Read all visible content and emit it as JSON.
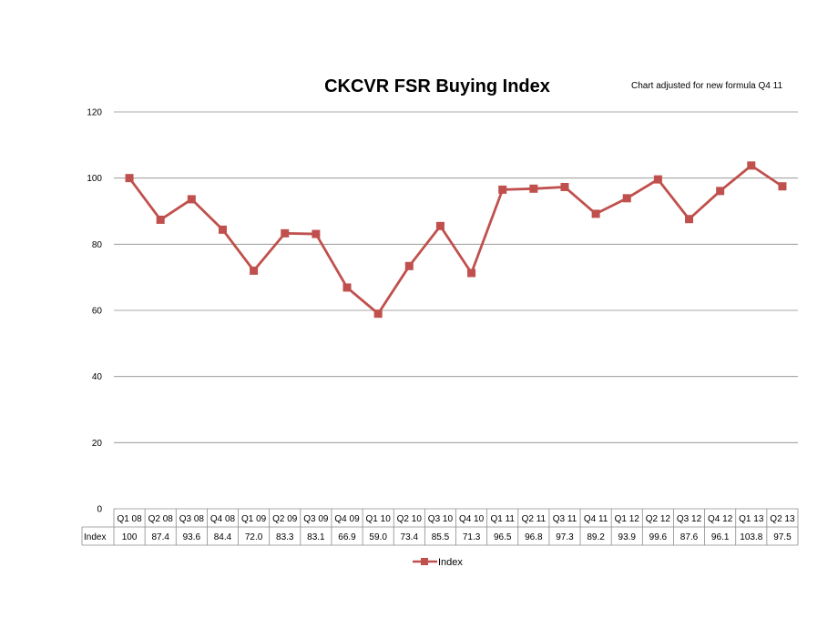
{
  "chart_data": {
    "type": "line",
    "title": "CKCVR FSR Buying Index",
    "annotation": "Chart adjusted for new formula Q4 11",
    "xlabel": "",
    "ylabel": "",
    "ylim": [
      0,
      120
    ],
    "y_ticks": [
      "0",
      "20",
      "40",
      "60",
      "80",
      "100",
      "120"
    ],
    "grid": true,
    "legend_position": "bottom",
    "categories": [
      "Q1 08",
      "Q2 08",
      "Q3 08",
      "Q4 08",
      "Q1 09",
      "Q2 09",
      "Q3 09",
      "Q4 09",
      "Q1 10",
      "Q2 10",
      "Q3 10",
      "Q4 10",
      "Q1 11",
      "Q2 11",
      "Q3 11",
      "Q4 11",
      "Q1 12",
      "Q2 12",
      "Q3 12",
      "Q4 12",
      "Q1 13",
      "Q2 13"
    ],
    "series": [
      {
        "name": "Index",
        "color": "#c0504d",
        "values": [
          100,
          87.4,
          93.6,
          84.4,
          72.0,
          83.3,
          83.1,
          66.9,
          59.0,
          73.4,
          85.5,
          71.3,
          96.5,
          96.8,
          97.3,
          89.2,
          93.9,
          99.6,
          87.6,
          96.1,
          103.8,
          97.5
        ],
        "value_labels": [
          "100",
          "87.4",
          "93.6",
          "84.4",
          "72.0",
          "83.3",
          "83.1",
          "66.9",
          "59.0",
          "73.4",
          "85.5",
          "71.3",
          "96.5",
          "96.8",
          "97.3",
          "89.2",
          "93.9",
          "99.6",
          "87.6",
          "96.1",
          "103.8",
          "97.5"
        ]
      }
    ]
  }
}
